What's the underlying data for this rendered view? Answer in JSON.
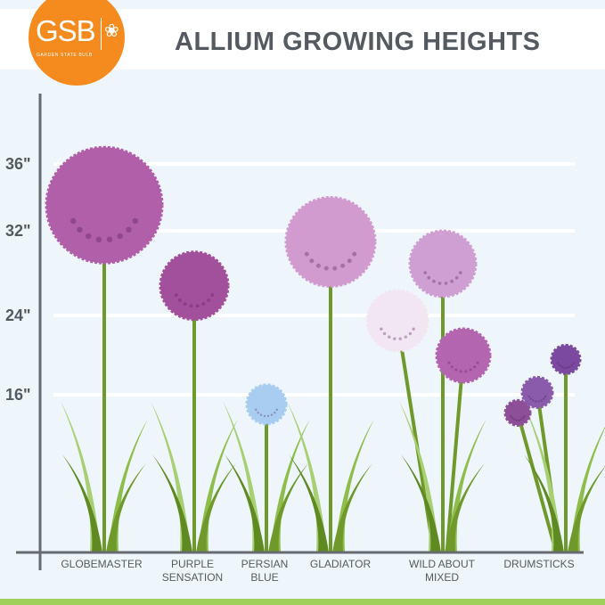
{
  "header": {
    "title": "ALLIUM GROWING HEIGHTS",
    "logo_text": "GSB",
    "logo_subtext": "GARDEN STATE BULB",
    "brand_color": "#f58a1f"
  },
  "chart_data": {
    "type": "bar",
    "title": "ALLIUM GROWING HEIGHTS",
    "y_ticks": [
      "16\"",
      "24\"",
      "32\"",
      "36\""
    ],
    "y_tick_values": [
      16,
      24,
      32,
      36
    ],
    "unit": "inches",
    "categories": [
      "GLOBEMASTER",
      "PURPLE\nSENSATION",
      "PERSIAN\nBLUE",
      "GLADIATOR",
      "WILD ABOUT\nMIXED",
      "DRUMSTICKS"
    ],
    "values": [
      37,
      30,
      17,
      34,
      32,
      21
    ],
    "head_colors": [
      "#b05fa8",
      "#a24f9c",
      "#a8cdf0",
      "#d29bd0",
      "#cf9fd3",
      "#7b4aa0"
    ],
    "grid": true
  }
}
